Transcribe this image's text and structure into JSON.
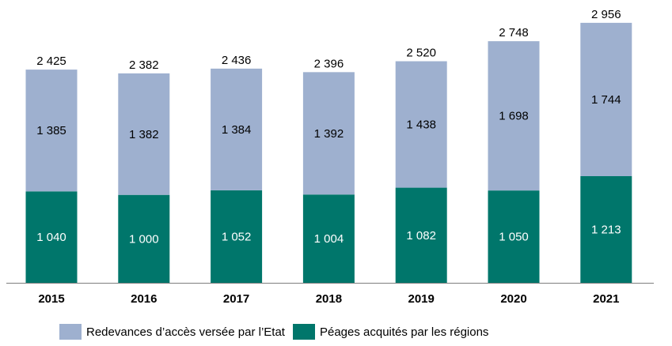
{
  "chart_data": {
    "type": "bar",
    "stacked": true,
    "categories": [
      "2015",
      "2016",
      "2017",
      "2018",
      "2019",
      "2020",
      "2021"
    ],
    "series": [
      {
        "name": "Péages acquités par les régions",
        "values": [
          1040,
          1000,
          1052,
          1004,
          1082,
          1050,
          1213
        ],
        "color": "#00766b"
      },
      {
        "name": "Redevances d’accès versée par l’Etat",
        "values": [
          1385,
          1382,
          1384,
          1392,
          1438,
          1698,
          1744
        ],
        "color": "#9eb0cf"
      }
    ],
    "totals": [
      2425,
      2382,
      2436,
      2396,
      2520,
      2748,
      2956
    ],
    "value_labels": {
      "bottom": [
        "1 040",
        "1 000",
        "1 052",
        "1 004",
        "1 082",
        "1 050",
        "1 213"
      ],
      "top": [
        "1 385",
        "1 382",
        "1 384",
        "1 392",
        "1 438",
        "1 698",
        "1 744"
      ],
      "totals": [
        "2 425",
        "2 382",
        "2 436",
        "2 396",
        "2 520",
        "2 748",
        "2 956"
      ]
    },
    "ylim": [
      0,
      3000
    ],
    "grid": false,
    "legend": "bottom",
    "title": "",
    "xlabel": "",
    "ylabel": ""
  }
}
